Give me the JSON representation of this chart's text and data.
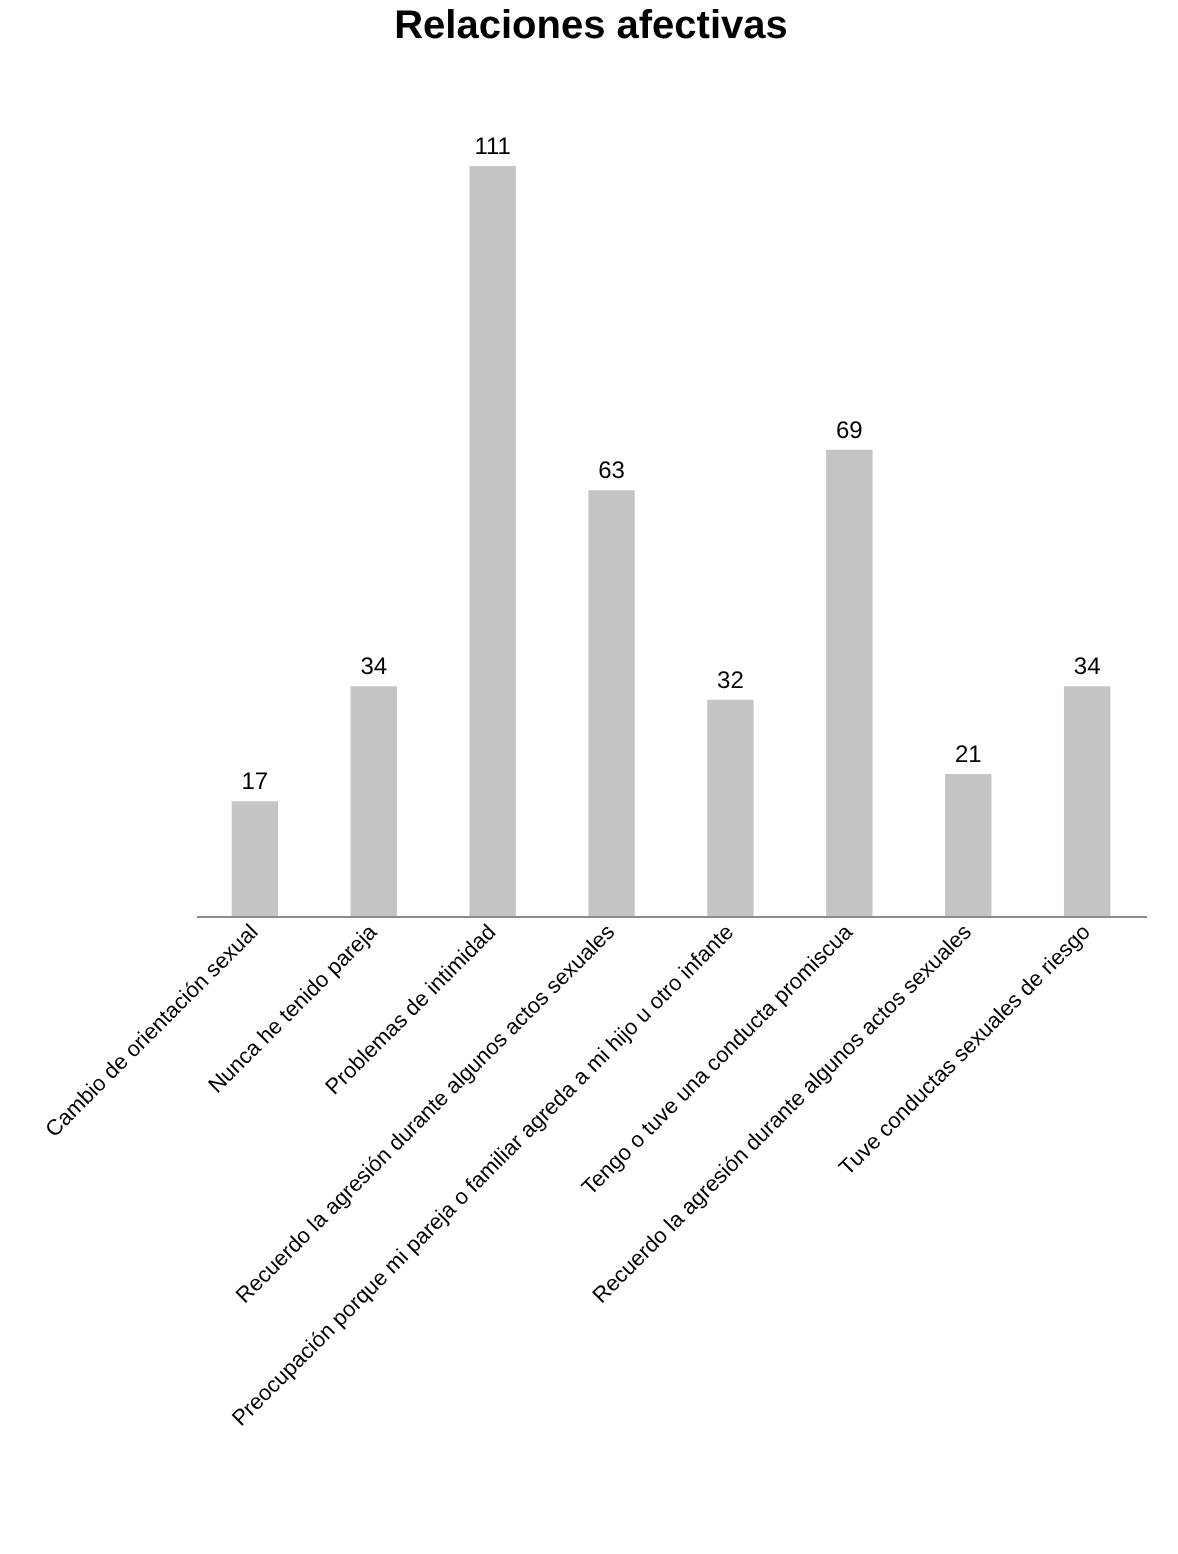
{
  "chart_data": {
    "type": "bar",
    "title": "Relaciones afectivas",
    "categories": [
      "Cambio de orientación sexual",
      "Nunca he tenido pareja",
      "Problemas de intimidad",
      "Recuerdo la agresión durante algunos actos sexuales",
      "Preocupación porque mi pareja o familiar agreda a mi hijo u otro infante",
      "Tengo o tuve una conducta promiscua",
      "Recuerdo la agresión durante algunos actos sexuales",
      "Tuve conductas sexuales de riesgo"
    ],
    "values": [
      17,
      34,
      111,
      63,
      32,
      69,
      21,
      34
    ],
    "color": "#c4c4c4",
    "data_labels": true,
    "grid": false,
    "tick_labels": "x"
  }
}
